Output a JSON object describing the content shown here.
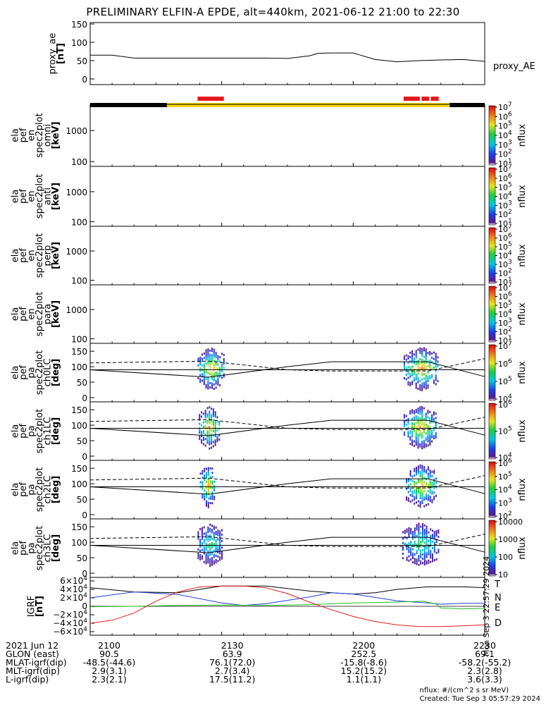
{
  "title": "PRELIMINARY ELFIN-A EPDE, alt=440km, 2021-06-12 21:00 to 22:30",
  "colors": {
    "frame": "#000000",
    "phase_black": "#000000",
    "phase_yellow": "#f5d800",
    "science_red": "#e41a1c",
    "T": "#000000",
    "N": "#1f3fd8",
    "E": "#1fbf1f",
    "D": "#e41a1c"
  },
  "panels": [
    {
      "id": "proxy_ae",
      "ylabel": [
        "proxy_ae",
        "[nT]"
      ],
      "right_label": "proxy_AE"
    },
    {
      "id": "omni",
      "ylabel": [
        "ela",
        "pef",
        "en",
        "spec2plot",
        "omni",
        "[keV]"
      ],
      "colorbar_title": "nflux"
    },
    {
      "id": "anti",
      "ylabel": [
        "ela",
        "pef",
        "en",
        "spec2plot",
        "anti",
        "[keV]"
      ],
      "colorbar_title": "nflux"
    },
    {
      "id": "perp",
      "ylabel": [
        "ela",
        "pef",
        "en",
        "spec2plot",
        "perp",
        "[keV]"
      ],
      "colorbar_title": "nflux"
    },
    {
      "id": "para",
      "ylabel": [
        "ela",
        "pef",
        "en",
        "spec2plot",
        "para",
        "[keV]"
      ],
      "colorbar_title": "nflux"
    },
    {
      "id": "ch0",
      "ylabel": [
        "ela",
        "pef",
        "pa",
        "spec2plot",
        "ch0LC",
        "[deg]"
      ],
      "colorbar_title": "nflux"
    },
    {
      "id": "ch1",
      "ylabel": [
        "ela",
        "pef",
        "pa",
        "spec2plot",
        "ch1LC",
        "[deg]"
      ],
      "colorbar_title": "nflux"
    },
    {
      "id": "ch2",
      "ylabel": [
        "ela",
        "pef",
        "pa",
        "spec2plot",
        "ch2LC",
        "[deg]"
      ],
      "colorbar_title": "nflux"
    },
    {
      "id": "ch3",
      "ylabel": [
        "ela",
        "pef",
        "pa",
        "spec2plot",
        "ch3LC",
        "[deg]"
      ],
      "colorbar_title": "nflux"
    },
    {
      "id": "igrf",
      "ylabel": [
        "IGRF",
        "[nT]"
      ]
    }
  ],
  "chart_data": [
    {
      "type": "line",
      "id": "proxy_ae",
      "x_minutes": [
        0,
        5,
        10,
        20,
        30,
        40,
        45,
        50,
        52,
        55,
        60,
        65,
        70,
        75,
        80,
        85,
        90
      ],
      "values": [
        65,
        65,
        57,
        57,
        57,
        57,
        56,
        63,
        70,
        71,
        71,
        53,
        47,
        50,
        52,
        53,
        48
      ],
      "ylim": [
        0,
        150
      ],
      "yticks": [
        "0",
        "50",
        "100",
        "150"
      ]
    },
    {
      "type": "heatmap",
      "id": "energy_spectra",
      "yaxis": "log",
      "ylim": [
        70,
        7000
      ],
      "yticks": [
        "100",
        "1000"
      ],
      "colorbar_ticks": [
        "10^1",
        "10^2",
        "10^3",
        "10^4",
        "10^5",
        "10^6",
        "10^7"
      ],
      "colorbar_unit": "nflux",
      "science_zones_minutes": [
        [
          24.5,
          30.5
        ],
        [
          71.5,
          79.5
        ]
      ]
    },
    {
      "type": "heatmap",
      "id": "pitch_angle",
      "ylim": [
        0,
        180
      ],
      "yticks": [
        "0",
        "50",
        "100",
        "150"
      ],
      "colorbar_ticks_ch0": [
        "10^4",
        "10^5",
        "10^6",
        "10^7"
      ],
      "colorbar_ticks_ch1": [
        "10^4",
        "10^5",
        "10^6"
      ],
      "colorbar_ticks_ch2": [
        "10^2",
        "10^3",
        "10^4",
        "10^5",
        "10^6"
      ],
      "colorbar_ticks_ch3": [
        "10",
        "100",
        "1000",
        "10000"
      ],
      "colorbar_unit": "nflux",
      "solid_line_minutes": [
        0,
        27,
        45,
        55,
        77,
        90
      ],
      "solid_line_deg": [
        90,
        66,
        100,
        116,
        116,
        68
      ],
      "dashed_line_minutes": [
        0,
        27,
        45,
        55,
        77,
        90
      ],
      "dashed_line_deg": [
        112,
        118,
        90,
        86,
        86,
        126
      ]
    },
    {
      "type": "line",
      "id": "igrf",
      "ylim": [
        -65000,
        65000
      ],
      "yticks": [
        "6×10^4",
        "4×10^4",
        "2×10^4",
        "0",
        "−2×10^4",
        "−4×10^4",
        "−6×10^4"
      ],
      "series": [
        {
          "name": "T",
          "x": [
            0,
            10,
            20,
            30,
            40,
            50,
            55,
            60,
            65,
            70,
            77,
            85,
            90
          ],
          "values": [
            44000,
            34000,
            32000,
            48000,
            48000,
            36000,
            32000,
            29000,
            32000,
            40000,
            46000,
            46000,
            44000
          ]
        },
        {
          "name": "N",
          "x": [
            0,
            10,
            20,
            30,
            35,
            40,
            50,
            55,
            60,
            65,
            70,
            77,
            80,
            85,
            90
          ],
          "values": [
            20000,
            34000,
            28000,
            8000,
            2000,
            6000,
            22000,
            32000,
            29000,
            21000,
            13000,
            8000,
            5000,
            7000,
            7000
          ]
        },
        {
          "name": "E",
          "x": [
            0,
            10,
            20,
            30,
            40,
            50,
            55,
            60,
            65,
            70,
            76,
            79,
            80,
            85,
            90
          ],
          "values": [
            -1000,
            0,
            2000,
            3000,
            2000,
            4000,
            6000,
            8000,
            9000,
            10000,
            12000,
            5000,
            -4000,
            -6000,
            -5000
          ]
        },
        {
          "name": "D",
          "x": [
            0,
            5,
            10,
            15,
            20,
            25,
            30,
            35,
            40,
            45,
            50,
            55,
            60,
            65,
            70,
            75,
            80,
            85,
            90
          ],
          "values": [
            -40000,
            -33000,
            -16000,
            12000,
            34000,
            46000,
            48000,
            48000,
            44000,
            30000,
            10000,
            -8000,
            -24000,
            -36000,
            -44000,
            -48000,
            -48000,
            -46000,
            -44000
          ]
        }
      ]
    }
  ],
  "stamp": "Mon Sep 3 22:57:29 2024",
  "footer": {
    "rows": [
      {
        "label": "2021 Jun 12",
        "values": [
          "2100",
          "2130",
          "2200",
          "2230"
        ]
      },
      {
        "label": "GLON (east)",
        "values": [
          "90.5",
          "63.9",
          "252.5",
          "69.1"
        ]
      },
      {
        "label": "MLAT-igrf(dip)",
        "values": [
          "-48.5(-44.6)",
          "76.1(72.0)",
          "-15.8(-8.6)",
          "-58.2(-55.2)"
        ]
      },
      {
        "label": "MLT-igrf(dip)",
        "values": [
          "2.9(3.1)",
          "2.7(3.4)",
          "15.2(15.2)",
          "2.3(2.8)"
        ]
      },
      {
        "label": "L-igrf(dip)",
        "values": [
          "2.3(2.1)",
          "17.5(11.2)",
          "1.1(1.1)",
          "3.6(3.3)"
        ]
      }
    ],
    "unit_note": "nflux: #/(cm^2 s sr MeV)",
    "created_note": "Created: Tue Sep  3 05:57:29 2024"
  }
}
